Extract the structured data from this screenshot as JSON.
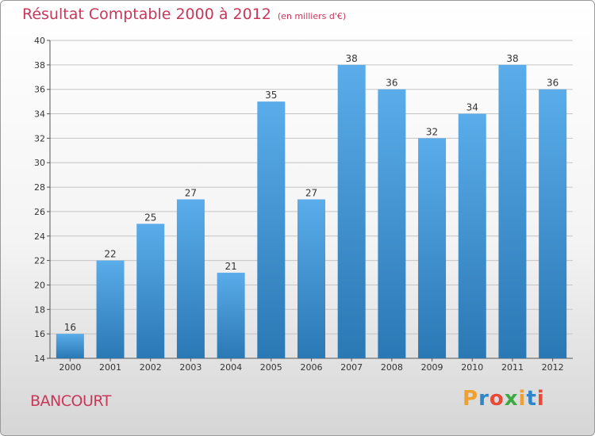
{
  "title": "Résultat Comptable 2000 à 2012",
  "subtitle": "(en milliers d'€)",
  "commune": "BANCOURT",
  "brand": {
    "letters": [
      "P",
      "r",
      "o",
      "x",
      "i",
      "t",
      "i"
    ],
    "colors": [
      "#f0a030",
      "#2e86c8",
      "#e84a3a",
      "#3aaa40",
      "#f0a030",
      "#2e86c8",
      "#e84a3a"
    ]
  },
  "colors": {
    "title": "#c8375a",
    "bar_top": "#5aacea",
    "bar_bottom": "#2a78b4"
  },
  "chart_data": {
    "type": "bar",
    "title": "Résultat Comptable 2000 à 2012",
    "ylabel": "(en milliers d'€)",
    "xlabel": "",
    "categories": [
      "2000",
      "2001",
      "2002",
      "2003",
      "2004",
      "2005",
      "2006",
      "2007",
      "2008",
      "2009",
      "2010",
      "2011",
      "2012"
    ],
    "values": [
      16,
      22,
      25,
      27,
      21,
      35,
      27,
      38,
      36,
      32,
      34,
      38,
      36
    ],
    "ylim": [
      14,
      40
    ],
    "yticks": [
      14,
      16,
      18,
      20,
      22,
      24,
      26,
      28,
      30,
      32,
      34,
      36,
      38,
      40
    ],
    "grid": true
  }
}
